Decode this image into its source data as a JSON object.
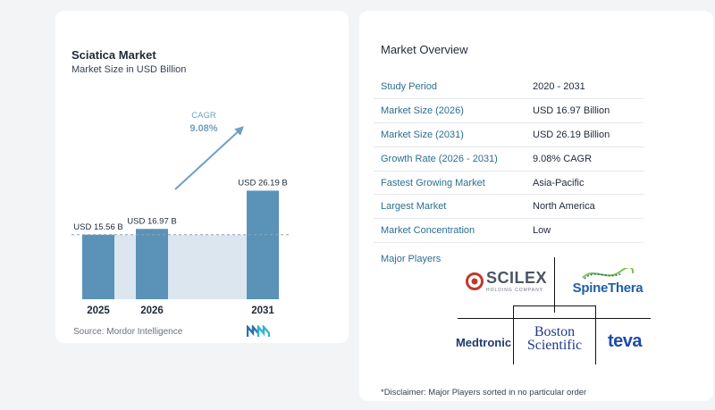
{
  "chart_data": {
    "type": "bar",
    "title": "Sciatica Market",
    "subtitle": "Market Size in USD Billion",
    "categories": [
      "2025",
      "2026",
      "2031"
    ],
    "values": [
      15.56,
      16.97,
      26.19
    ],
    "data_labels": [
      "USD 15.56 B",
      "USD 16.97 B",
      "USD 26.19 B"
    ],
    "cagr_label": "CAGR",
    "cagr_value": "9.08%",
    "colors": {
      "bar": "#5b92b8",
      "baseline_fill": "#dbe6ef",
      "arrow": "#6fa0c4",
      "cagr_text": "#6fa0c4"
    },
    "grid": false
  },
  "source": "Source:  Mordor Intelligence",
  "overview": {
    "title": "Market Overview",
    "rows": [
      {
        "label": "Study Period",
        "value": "2020 - 2031"
      },
      {
        "label": "Market Size (2026)",
        "value": "USD 16.97 Billion"
      },
      {
        "label": "Market Size (2031)",
        "value": "USD 26.19 Billion"
      },
      {
        "label": "Growth Rate (2026 - 2031)",
        "value": "9.08% CAGR"
      },
      {
        "label": "Fastest Growing Market",
        "value": "Asia-Pacific"
      },
      {
        "label": "Largest Market",
        "value": "North America"
      },
      {
        "label": "Market Concentration",
        "value": "Low"
      }
    ],
    "players_label": "Major Players",
    "players": {
      "scilex": "SCILEX",
      "scilex_sub": "HOLDING COMPANY",
      "spinethera": "SpineThera",
      "medtronic": "Medtronic",
      "boston_1": "Boston",
      "boston_2": "Scientific",
      "teva": "teva"
    },
    "disclaimer": "*Disclaimer: Major Players sorted in no particular order"
  }
}
